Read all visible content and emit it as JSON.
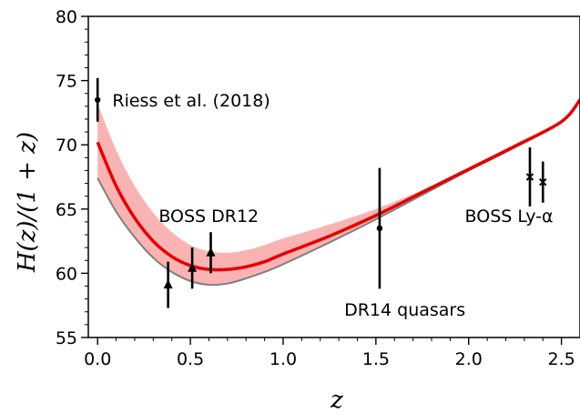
{
  "chart_data": {
    "type": "line",
    "xlabel": "z",
    "ylabel": "H(z)/(1 + z)",
    "xlim": [
      -0.05,
      2.6
    ],
    "ylim": [
      55,
      80
    ],
    "x_ticks": [
      0.0,
      0.5,
      1.0,
      1.5,
      2.0,
      2.5
    ],
    "x_tick_labels": [
      "0.0",
      "0.5",
      "1.0",
      "1.5",
      "2.0",
      "2.5"
    ],
    "y_ticks": [
      55,
      60,
      65,
      70,
      75,
      80
    ],
    "y_tick_labels": [
      "55",
      "60",
      "65",
      "70",
      "75",
      "80"
    ],
    "grid": false,
    "series": [
      {
        "kind": "band",
        "color": "#f9b3b3",
        "x": [
          0.0,
          0.1,
          0.2,
          0.3,
          0.4,
          0.5,
          0.6,
          0.7,
          0.8,
          0.9,
          1.0,
          1.25,
          1.5,
          1.75,
          2.0,
          2.25,
          2.5,
          2.6
        ],
        "y_upper": [
          73.2,
          69.6,
          66.8,
          64.7,
          63.2,
          62.2,
          61.7,
          61.6,
          61.8,
          62.2,
          62.7,
          63.8,
          65.0,
          66.5,
          68.2,
          69.9,
          71.9,
          73.5
        ],
        "y_lower": [
          67.4,
          64.8,
          62.8,
          61.2,
          60.1,
          59.4,
          59.1,
          59.2,
          59.6,
          60.1,
          60.7,
          62.4,
          64.2,
          66.1,
          68.0,
          69.8,
          71.8,
          73.5
        ]
      },
      {
        "kind": "line",
        "color": "#e50000",
        "x": [
          0.0,
          0.1,
          0.2,
          0.3,
          0.4,
          0.5,
          0.6,
          0.7,
          0.8,
          0.9,
          1.0,
          1.25,
          1.5,
          1.75,
          2.0,
          2.25,
          2.5,
          2.6
        ],
        "y": [
          70.2,
          66.8,
          64.3,
          62.5,
          61.3,
          60.6,
          60.3,
          60.3,
          60.5,
          60.9,
          61.5,
          62.9,
          64.5,
          66.3,
          68.1,
          69.9,
          71.8,
          73.5
        ]
      },
      {
        "kind": "line",
        "color": "#7f7f7f",
        "x": [
          0.0,
          0.1,
          0.2,
          0.3,
          0.4,
          0.5,
          0.6,
          0.7,
          0.8,
          0.9,
          1.0,
          1.25,
          1.5,
          1.75,
          2.0,
          2.25,
          2.5,
          2.6
        ],
        "y": [
          67.4,
          64.8,
          62.8,
          61.2,
          60.1,
          59.4,
          59.1,
          59.2,
          59.6,
          60.1,
          60.7,
          62.4,
          64.2,
          66.1,
          68.0,
          69.8,
          71.8,
          73.5
        ]
      }
    ],
    "points": [
      {
        "x": 0.0,
        "y": 73.5,
        "err": 1.7,
        "marker": "circle"
      },
      {
        "x": 0.38,
        "y": 59.1,
        "err": 1.8,
        "marker": "triangle"
      },
      {
        "x": 0.51,
        "y": 60.4,
        "err": 1.6,
        "marker": "triangle"
      },
      {
        "x": 0.61,
        "y": 61.6,
        "err": 1.6,
        "marker": "triangle"
      },
      {
        "x": 1.52,
        "y": 63.5,
        "err": 4.7,
        "marker": "circle"
      },
      {
        "x": 2.33,
        "y": 67.5,
        "err": 2.3,
        "marker": "x"
      },
      {
        "x": 2.4,
        "y": 67.1,
        "err": 1.6,
        "marker": "x"
      }
    ],
    "annotations": [
      {
        "text": "Riess et al. (2018)",
        "x": 0.05,
        "y": 73.5
      },
      {
        "text": "BOSS DR12",
        "x": 0.3,
        "y": 64.5
      },
      {
        "text": "DR14 quasars",
        "x": 1.3,
        "y": 57.2
      },
      {
        "text": "BOSS Ly-α",
        "x": 1.95,
        "y": 64.5
      }
    ]
  }
}
